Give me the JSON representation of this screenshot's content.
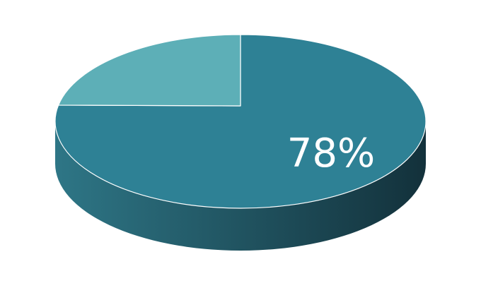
{
  "chart_data": {
    "type": "pie",
    "style": "3d",
    "slices": [
      {
        "value": 78,
        "color": "#2E8195",
        "label": "78%"
      },
      {
        "value": 22,
        "color": "#5DAFB7",
        "label": ""
      }
    ],
    "side_colors": [
      "#2E7686",
      "#13313B"
    ],
    "legend": "none"
  }
}
